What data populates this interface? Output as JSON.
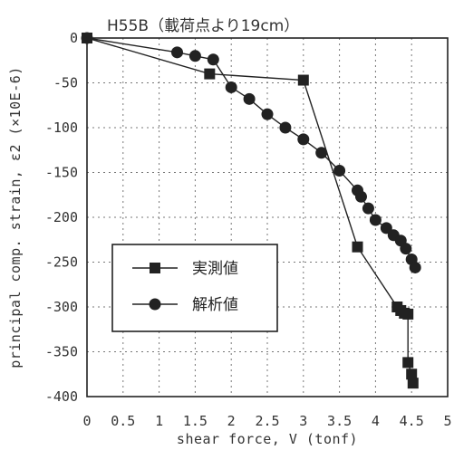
{
  "chart_data": {
    "type": "line",
    "title": "H55B（載荷点より19cm）",
    "xlabel": "shear force, V (tonf)",
    "ylabel": "principal comp. strain, ε2 (×10E-6)",
    "xlim": [
      0,
      5
    ],
    "ylim": [
      -400,
      0
    ],
    "xticks": [
      "0",
      "0.5",
      "1",
      "1.5",
      "2",
      "2.5",
      "3",
      "3.5",
      "4",
      "4.5",
      "5"
    ],
    "yticks": [
      "0",
      "-50",
      "-100",
      "-150",
      "-200",
      "-250",
      "-300",
      "-350",
      "-400"
    ],
    "grid": true,
    "legend_position": "lower-left",
    "series": [
      {
        "name": "実測値",
        "marker": "square",
        "color": "#222222",
        "x": [
          0,
          1.7,
          3.0,
          3.75,
          4.3,
          4.35,
          4.4,
          4.45,
          4.45,
          4.5,
          4.52
        ],
        "y": [
          0,
          -40,
          -47,
          -233,
          -300,
          -304,
          -307,
          -308,
          -362,
          -375,
          -385
        ]
      },
      {
        "name": "解析値",
        "marker": "circle",
        "color": "#222222",
        "x": [
          0,
          1.25,
          1.5,
          1.75,
          2.0,
          2.25,
          2.5,
          2.75,
          3.0,
          3.25,
          3.5,
          3.75,
          3.8,
          3.9,
          4.0,
          4.15,
          4.25,
          4.35,
          4.42,
          4.5,
          4.55
        ],
        "y": [
          0,
          -16,
          -20,
          -24,
          -55,
          -68,
          -85,
          -100,
          -113,
          -128,
          -148,
          -170,
          -177,
          -190,
          -203,
          -212,
          -220,
          -226,
          -235,
          -247,
          -256
        ]
      }
    ]
  }
}
